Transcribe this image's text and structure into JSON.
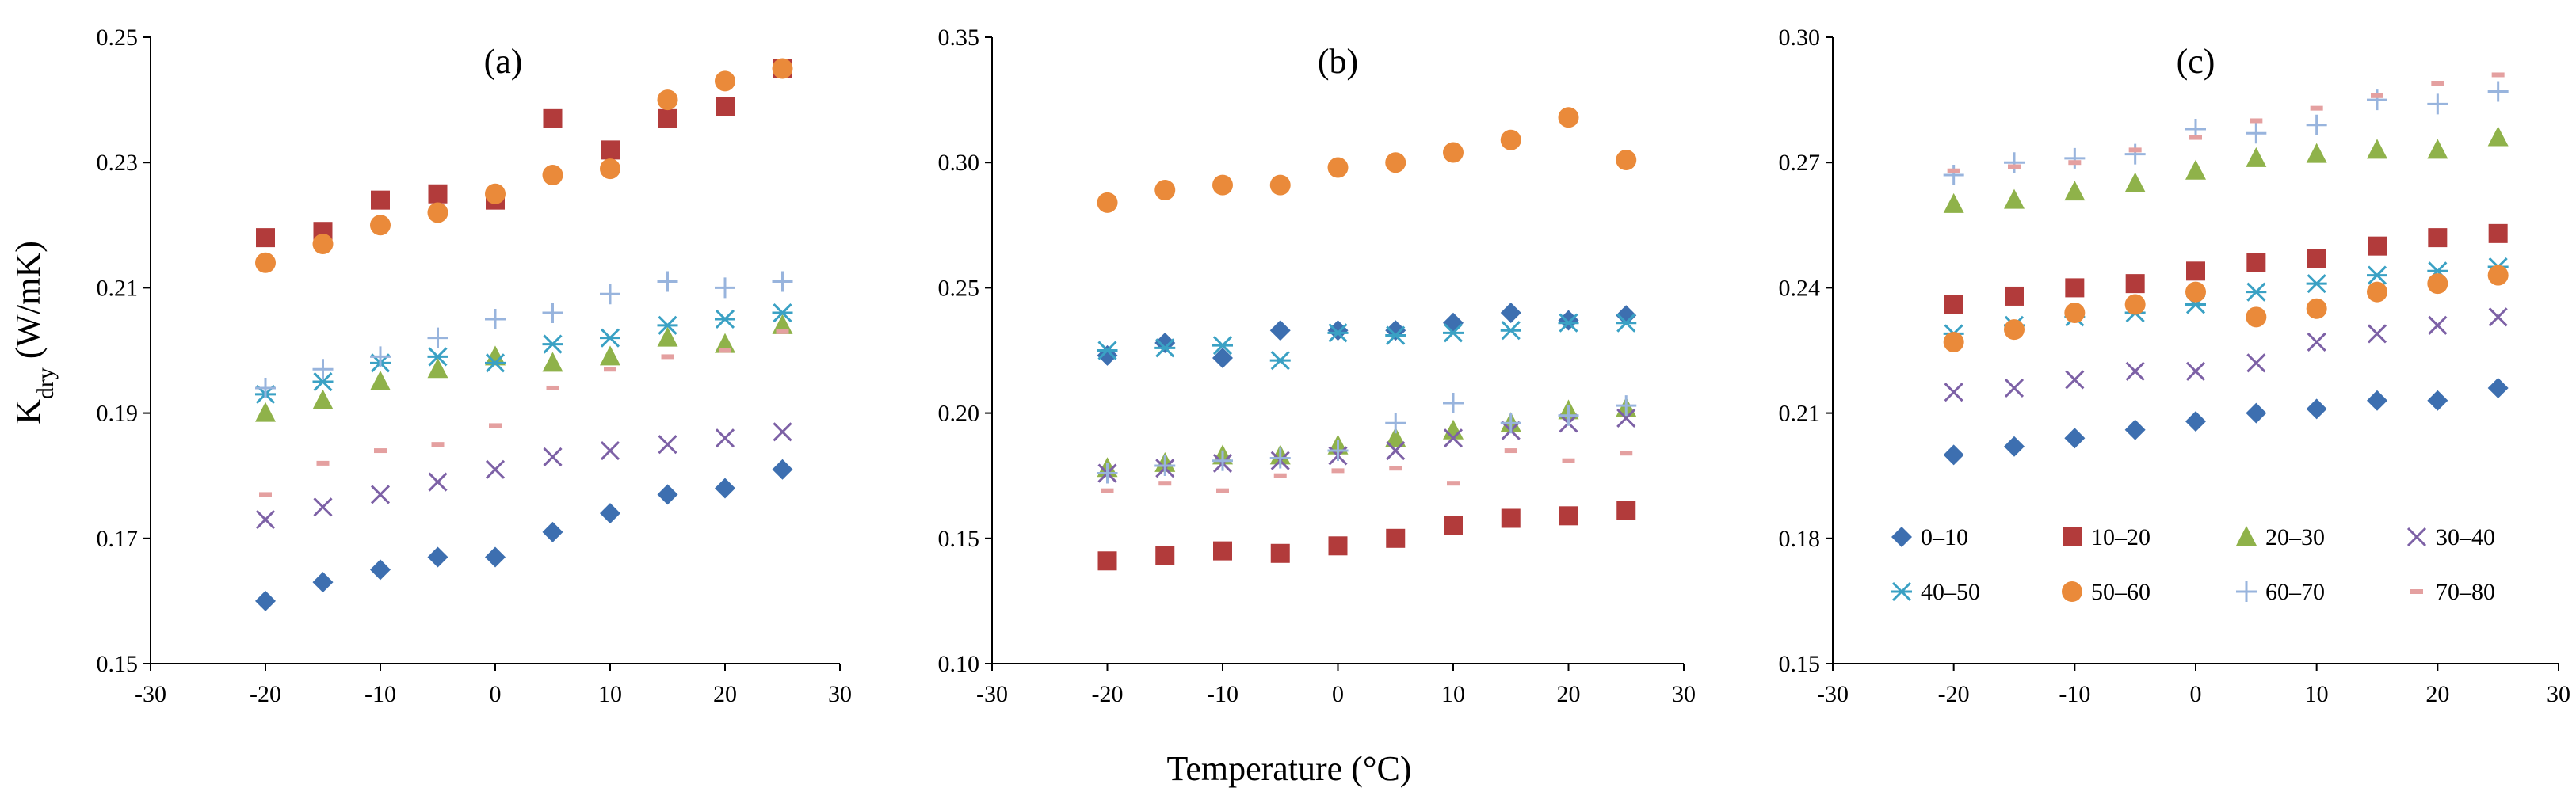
{
  "figure": {
    "ylabel_main": "K",
    "ylabel_sub": "dry",
    "ylabel_unit": " (W/mK)",
    "xlabel": "Temperature (°C)"
  },
  "colors": {
    "0–10": "#3d6fb0",
    "10–20": "#b23b3b",
    "20–30": "#8fb24a",
    "30–40": "#7d61a6",
    "40–50": "#3aa1c4",
    "50–60": "#ea8a3a",
    "60–70": "#98b4dd",
    "70–80": "#e4a0a0"
  },
  "markers": {
    "0–10": "diamond",
    "10–20": "square",
    "20–30": "triangle",
    "30–40": "x",
    "40–50": "asterisk",
    "50–60": "circle",
    "60–70": "plus",
    "70–80": "dash"
  },
  "legend": {
    "entries": [
      "0–10",
      "10–20",
      "20–30",
      "30–40",
      "40–50",
      "50–60",
      "60–70",
      "70–80"
    ]
  },
  "chart_data": [
    {
      "type": "scatter",
      "panel_label": "(a)",
      "xlim": [
        -30,
        30
      ],
      "ylim": [
        0.15,
        0.25
      ],
      "xticks": [
        -30,
        -20,
        -10,
        0,
        10,
        20,
        30
      ],
      "yticks": [
        "0.15",
        "0.17",
        "0.19",
        "0.21",
        "0.23",
        "0.25"
      ],
      "x": [
        -20,
        -15,
        -10,
        -5,
        0,
        5,
        10,
        15,
        20,
        25
      ],
      "series": [
        {
          "name": "0–10",
          "values": [
            0.16,
            0.163,
            0.165,
            0.167,
            0.167,
            0.171,
            0.174,
            0.177,
            0.178,
            0.181
          ]
        },
        {
          "name": "10–20",
          "values": [
            0.218,
            0.219,
            0.224,
            0.225,
            0.224,
            0.237,
            0.232,
            0.237,
            0.239,
            0.245
          ]
        },
        {
          "name": "20–30",
          "values": [
            0.19,
            0.192,
            0.195,
            0.197,
            0.199,
            0.198,
            0.199,
            0.202,
            0.201,
            0.204
          ]
        },
        {
          "name": "30–40",
          "values": [
            0.173,
            0.175,
            0.177,
            0.179,
            0.181,
            0.183,
            0.184,
            0.185,
            0.186,
            0.187
          ]
        },
        {
          "name": "40–50",
          "values": [
            0.193,
            0.195,
            0.198,
            0.199,
            0.198,
            0.201,
            0.202,
            0.204,
            0.205,
            0.206
          ]
        },
        {
          "name": "50–60",
          "values": [
            0.214,
            0.217,
            0.22,
            0.222,
            0.225,
            0.228,
            0.229,
            0.24,
            0.243,
            0.245
          ]
        },
        {
          "name": "60–70",
          "values": [
            0.194,
            0.197,
            0.199,
            0.202,
            0.205,
            0.206,
            0.209,
            0.211,
            0.21,
            0.211
          ]
        },
        {
          "name": "70–80",
          "values": [
            0.177,
            0.182,
            0.184,
            0.185,
            0.188,
            0.194,
            0.197,
            0.199,
            0.2,
            0.203
          ]
        }
      ]
    },
    {
      "type": "scatter",
      "panel_label": "(b)",
      "xlim": [
        -30,
        30
      ],
      "ylim": [
        0.1,
        0.35
      ],
      "xticks": [
        -30,
        -20,
        -10,
        0,
        10,
        20,
        30
      ],
      "yticks": [
        "0.10",
        "0.15",
        "0.20",
        "0.25",
        "0.30",
        "0.35"
      ],
      "x": [
        -20,
        -15,
        -10,
        -5,
        0,
        5,
        10,
        15,
        20,
        25
      ],
      "series": [
        {
          "name": "0–10",
          "values": [
            0.223,
            0.228,
            0.222,
            0.233,
            0.233,
            0.233,
            0.236,
            0.24,
            0.237,
            0.239
          ]
        },
        {
          "name": "10–20",
          "values": [
            0.141,
            0.143,
            0.145,
            0.144,
            0.147,
            0.15,
            0.155,
            0.158,
            0.159,
            0.161
          ]
        },
        {
          "name": "20–30",
          "values": [
            0.178,
            0.18,
            0.183,
            0.183,
            0.187,
            0.19,
            0.193,
            0.196,
            0.201,
            0.202
          ]
        },
        {
          "name": "30–40",
          "values": [
            0.176,
            0.178,
            0.18,
            0.181,
            0.183,
            0.185,
            0.19,
            0.193,
            0.196,
            0.198
          ]
        },
        {
          "name": "40–50",
          "values": [
            0.225,
            0.226,
            0.227,
            0.221,
            0.232,
            0.231,
            0.232,
            0.233,
            0.236,
            0.236
          ]
        },
        {
          "name": "50–60",
          "values": [
            0.284,
            0.289,
            0.291,
            0.291,
            0.298,
            0.3,
            0.304,
            0.309,
            0.318,
            0.301
          ]
        },
        {
          "name": "60–70",
          "values": [
            0.176,
            0.179,
            0.181,
            0.182,
            0.185,
            0.196,
            0.204,
            0.196,
            0.199,
            0.203
          ]
        },
        {
          "name": "70–80",
          "values": [
            0.169,
            0.172,
            0.169,
            0.175,
            0.177,
            0.178,
            0.172,
            0.185,
            0.181,
            0.184
          ]
        }
      ]
    },
    {
      "type": "scatter",
      "panel_label": "(c)",
      "xlim": [
        -30,
        30
      ],
      "ylim": [
        0.15,
        0.3
      ],
      "xticks": [
        -30,
        -20,
        -10,
        0,
        10,
        20,
        30
      ],
      "yticks": [
        "0.15",
        "0.18",
        "0.21",
        "0.24",
        "0.27",
        "0.30"
      ],
      "x": [
        -20,
        -15,
        -10,
        -5,
        0,
        5,
        10,
        15,
        20,
        25
      ],
      "series": [
        {
          "name": "0–10",
          "values": [
            0.2,
            0.202,
            0.204,
            0.206,
            0.208,
            0.21,
            0.211,
            0.213,
            0.213,
            0.216
          ]
        },
        {
          "name": "10–20",
          "values": [
            0.236,
            0.238,
            0.24,
            0.241,
            0.244,
            0.246,
            0.247,
            0.25,
            0.252,
            0.253
          ]
        },
        {
          "name": "20–30",
          "values": [
            0.26,
            0.261,
            0.263,
            0.265,
            0.268,
            0.271,
            0.272,
            0.273,
            0.273,
            0.276
          ]
        },
        {
          "name": "30–40",
          "values": [
            0.215,
            0.216,
            0.218,
            0.22,
            0.22,
            0.222,
            0.227,
            0.229,
            0.231,
            0.233
          ]
        },
        {
          "name": "40–50",
          "values": [
            0.229,
            0.231,
            0.233,
            0.234,
            0.236,
            0.239,
            0.241,
            0.243,
            0.244,
            0.245
          ]
        },
        {
          "name": "50–60",
          "values": [
            0.227,
            0.23,
            0.234,
            0.236,
            0.239,
            0.233,
            0.235,
            0.239,
            0.241,
            0.243
          ]
        },
        {
          "name": "60–70",
          "values": [
            0.267,
            0.27,
            0.271,
            0.272,
            0.278,
            0.277,
            0.279,
            0.285,
            0.284,
            0.287
          ]
        },
        {
          "name": "70–80",
          "values": [
            0.268,
            0.269,
            0.27,
            0.273,
            0.276,
            0.28,
            0.283,
            0.286,
            0.289,
            0.291
          ]
        }
      ]
    }
  ]
}
